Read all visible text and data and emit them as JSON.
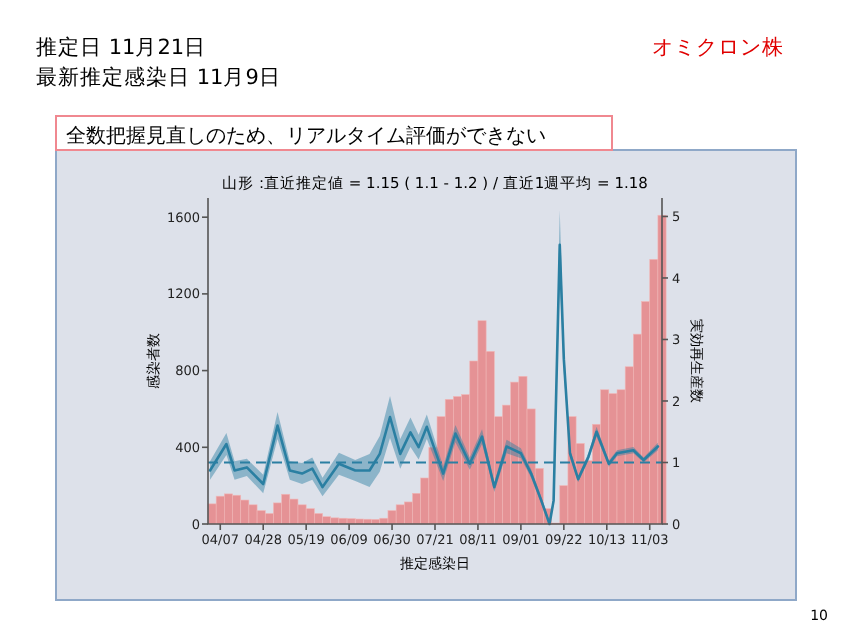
{
  "chart_data": {
    "type": "bar",
    "title": "山形 :直近推定値 = 1.15 ( 1.1 - 1.2 ) / 直近1週平均 = 1.18",
    "subtitle": "全数把握見直しのため、リアルタイム評価ができない",
    "xlabel": "推定感染日",
    "ylabel": "感染者数",
    "y2label": "実効再生産数",
    "annotations": [
      "推定日  11月21日",
      "最新推定感染日  11月9日",
      "オミクロン株",
      "10"
    ],
    "x": [
      "--04-01",
      "--04-05",
      "--04-09",
      "--04-13",
      "--04-17",
      "--04-21",
      "--04-25",
      "--04-29",
      "--05-03",
      "--05-07",
      "--05-11",
      "--05-15",
      "--05-19",
      "--05-23",
      "--05-27",
      "--05-31",
      "--06-04",
      "--06-08",
      "--06-12",
      "--06-16",
      "--06-20",
      "--06-24",
      "--06-28",
      "--07-02",
      "--07-06",
      "--07-10",
      "--07-14",
      "--07-18",
      "--07-22",
      "--07-26",
      "--07-30",
      "--08-03",
      "--08-07",
      "--08-11",
      "--08-15",
      "--08-19",
      "--08-23",
      "--08-27",
      "--08-31",
      "--09-04",
      "--09-08",
      "--09-12",
      "--09-16",
      "--09-20",
      "--09-24",
      "--09-28",
      "--10-02",
      "--10-06",
      "--10-10",
      "--10-14",
      "--10-18",
      "--10-22",
      "--10-26",
      "--10-30",
      "--11-03",
      "--11-07"
    ],
    "xlim": [
      "--04-01",
      "--11-09"
    ],
    "xticks": [
      {
        "value": "--04-07",
        "label": "04/07"
      },
      {
        "value": "--04-28",
        "label": "04/28"
      },
      {
        "value": "--05-19",
        "label": "05/19"
      },
      {
        "value": "--06-09",
        "label": "06/09"
      },
      {
        "value": "--06-30",
        "label": "06/30"
      },
      {
        "value": "--07-21",
        "label": "07/21"
      },
      {
        "value": "--08-11",
        "label": "08/11"
      },
      {
        "value": "--09-01",
        "label": "09/01"
      },
      {
        "value": "--09-22",
        "label": "09/22"
      },
      {
        "value": "--10-13",
        "label": "10/13"
      },
      {
        "value": "--11-03",
        "label": "11/03"
      }
    ],
    "ylim": [
      0,
      1700
    ],
    "yticks": [
      0,
      400,
      800,
      1200,
      1600
    ],
    "y2lim": [
      0,
      5.3
    ],
    "y2ticks": [
      0,
      1,
      2,
      3,
      4,
      5
    ],
    "series": [
      {
        "color": "#e58a8c",
        "values": [
          105,
          145,
          157,
          150,
          125,
          100,
          70,
          55,
          110,
          155,
          130,
          100,
          80,
          55,
          38,
          32,
          30,
          28,
          26,
          25,
          24,
          30,
          70,
          100,
          115,
          160,
          240,
          400,
          560,
          650,
          665,
          675,
          850,
          1060,
          900,
          560,
          620,
          740,
          770,
          600,
          290,
          80,
          5,
          200,
          560,
          420,
          330,
          520,
          700,
          680,
          700,
          820,
          990,
          1160,
          1380,
          1610
        ]
      },
      {
        "type": "line",
        "axis": "y2",
        "color": "#2a7fa2",
        "x": [
          "--04-02",
          "--04-10",
          "--04-14",
          "--04-20",
          "--04-28",
          "--05-05",
          "--05-11",
          "--05-17",
          "--05-22",
          "--05-27",
          "--06-04",
          "--06-12",
          "--06-19",
          "--06-24",
          "--06-29",
          "--07-04",
          "--07-09",
          "--07-13",
          "--07-17",
          "--07-25",
          "--07-31",
          "--08-07",
          "--08-13",
          "--08-19",
          "--08-25",
          "--09-01",
          "--09-06",
          "--09-11",
          "--09-15",
          "--09-17",
          "--09-20",
          "--09-22",
          "--09-25",
          "--09-29",
          "--10-04",
          "--10-08",
          "--10-14",
          "--10-18",
          "--10-26",
          "--10-31",
          "--11-07"
        ],
        "values": [
          0.87,
          1.3,
          0.87,
          0.92,
          0.65,
          1.6,
          0.87,
          0.82,
          0.9,
          0.6,
          0.98,
          0.87,
          0.87,
          1.14,
          1.74,
          1.14,
          1.49,
          1.25,
          1.58,
          0.82,
          1.47,
          0.98,
          1.42,
          0.6,
          1.26,
          1.15,
          0.82,
          0.38,
          0.0,
          0.38,
          4.54,
          2.68,
          1.15,
          0.73,
          1.09,
          1.5,
          0.98,
          1.15,
          1.2,
          1.04,
          1.26
        ],
        "lower": [
          0.72,
          1.12,
          0.72,
          0.78,
          0.5,
          1.38,
          0.72,
          0.65,
          0.72,
          0.45,
          0.8,
          0.7,
          0.6,
          0.85,
          1.4,
          0.9,
          1.25,
          1.05,
          1.38,
          0.7,
          1.33,
          0.88,
          1.3,
          0.52,
          1.15,
          1.07,
          0.75,
          0.32,
          0.0,
          0.3,
          4.0,
          2.45,
          1.08,
          0.68,
          1.03,
          1.42,
          0.93,
          1.1,
          1.15,
          1.0,
          1.2
        ],
        "upper": [
          1.02,
          1.48,
          1.02,
          1.06,
          0.8,
          1.82,
          1.02,
          0.99,
          1.08,
          0.75,
          1.16,
          1.04,
          1.14,
          1.43,
          2.08,
          1.38,
          1.73,
          1.45,
          1.78,
          0.94,
          1.61,
          1.08,
          1.54,
          0.68,
          1.37,
          1.23,
          0.89,
          0.44,
          0.05,
          0.46,
          5.1,
          2.91,
          1.22,
          0.78,
          1.15,
          1.58,
          1.03,
          1.2,
          1.25,
          1.08,
          1.32
        ]
      }
    ],
    "ref_lines": [
      {
        "axis": "y2",
        "value": 1,
        "color": "#2a7fa2",
        "line_style": "dashed"
      }
    ],
    "grid": false
  }
}
